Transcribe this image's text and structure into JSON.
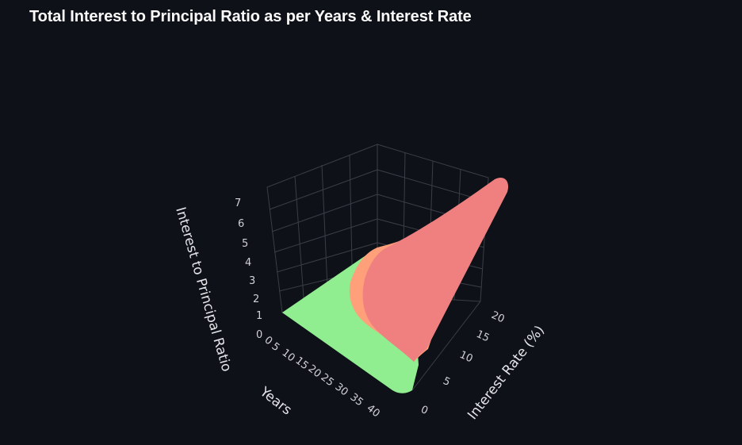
{
  "chart_title": "Total Interest to Principal Ratio as per Years & Interest Rate",
  "chart_data": {
    "type": "surface3d",
    "title": "Total Interest to Principal Ratio as per Years & Interest Rate",
    "x_axis": {
      "label": "Years",
      "ticks": [
        "0",
        "5",
        "10",
        "15",
        "20",
        "25",
        "30",
        "35",
        "40"
      ],
      "range": [
        0,
        40
      ]
    },
    "y_axis": {
      "label": "Interest Rate (%)",
      "ticks": [
        "0",
        "5",
        "10",
        "15",
        "20"
      ],
      "range": [
        0,
        20
      ]
    },
    "z_axis": {
      "label": "Interest to Principal Ratio",
      "ticks": [
        "0",
        "1",
        "2",
        "3",
        "4",
        "5",
        "6",
        "7"
      ],
      "range": [
        0,
        7.5
      ]
    },
    "color_bands": [
      {
        "range": "low ratio",
        "color": "#90ee90"
      },
      {
        "range": "medium ratio",
        "color": "#ffa07a"
      },
      {
        "range": "high ratio",
        "color": "#f08080"
      }
    ],
    "max_value": {
      "years": 40,
      "rate": 20,
      "ratio": 7
    },
    "grid": true
  }
}
